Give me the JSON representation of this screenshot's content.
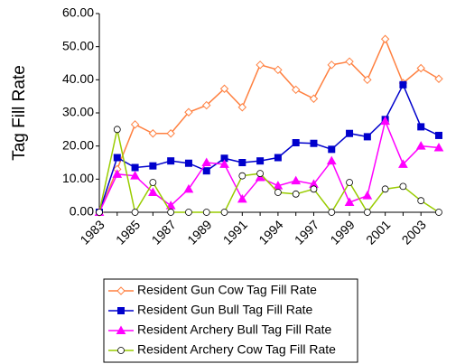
{
  "chart_data": {
    "type": "line",
    "y_label": "Tag Fill Rate",
    "categories": [
      "1983",
      null,
      "1985",
      null,
      "1987",
      null,
      "1989",
      null,
      "1991",
      null,
      "1994",
      null,
      "1997",
      null,
      "1999",
      null,
      "2001",
      null,
      "2003",
      null
    ],
    "ylim": [
      0,
      60
    ],
    "yticks": [
      {
        "value": 0,
        "label": "0.00"
      },
      {
        "value": 10,
        "label": "10.00"
      },
      {
        "value": 20,
        "label": "20.00"
      },
      {
        "value": 30,
        "label": "30.00"
      },
      {
        "value": 40,
        "label": "40.00"
      },
      {
        "value": 50,
        "label": "50.00"
      },
      {
        "value": 60,
        "label": "60.00"
      }
    ],
    "grid": false,
    "legend": "bottom",
    "series": [
      {
        "name": "Resident Gun Cow Tag Fill Rate",
        "color": "#FF8040",
        "marker": "diamond-open",
        "values": [
          0,
          13,
          26.5,
          23.8,
          23.8,
          30.2,
          32.3,
          37.3,
          31.7,
          44.5,
          43,
          37,
          34.3,
          44.5,
          45.5,
          40,
          52.3,
          39,
          43.5,
          40.3
        ]
      },
      {
        "name": "Resident Gun Bull Tag Fill Rate",
        "color": "#0000CC",
        "marker": "square",
        "values": [
          0,
          16.5,
          13.5,
          14,
          15.5,
          14.8,
          12.5,
          16.3,
          15,
          15.5,
          16.5,
          21,
          20.8,
          19,
          23.8,
          22.8,
          28,
          38.5,
          25.8,
          23.2
        ]
      },
      {
        "name": "Resident Archery Bull Tag Fill Rate",
        "color": "#FF00FF",
        "marker": "triangle",
        "values": [
          0,
          11.5,
          11,
          6,
          2,
          7,
          15,
          14.5,
          4,
          10.5,
          8,
          9.5,
          8.5,
          15.5,
          3,
          5,
          27.5,
          14.5,
          20,
          19.5
        ]
      },
      {
        "name": "Resident Archery Cow Tag Fill Rate",
        "color": "#99CC00",
        "marker": "circle-open",
        "values": [
          0,
          25,
          0,
          9,
          0,
          0,
          0,
          0,
          11,
          11.7,
          6,
          5.5,
          7,
          0,
          9,
          0,
          7,
          7.8,
          3.5,
          0
        ]
      }
    ]
  }
}
